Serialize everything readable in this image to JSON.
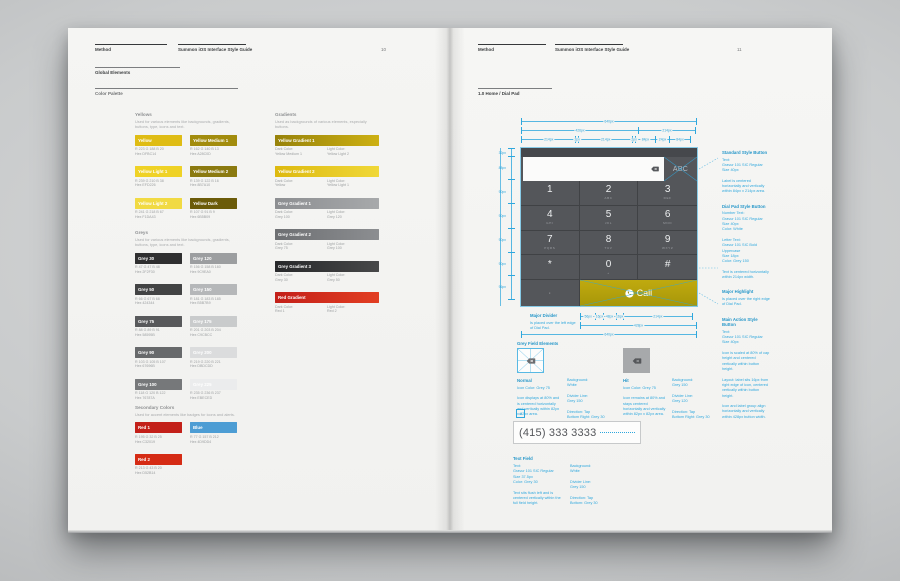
{
  "meta": {
    "colors": {
      "annotation_blue": "#2ea7dd",
      "dialpad_grey": "#54565a",
      "call_yellow": "#b3a10a",
      "page_paper": "#f4f4f2"
    }
  },
  "left_page": {
    "brand": "Method",
    "doc_title": "Summon iOS Interface Style Guide",
    "page_number": "10",
    "section_title": "Global Elements",
    "subsection_title": "Color Palette",
    "yellows": {
      "title": "Yellows",
      "description": "Used for various elements like backgrounds, gradients, buttons, type, icons and text.",
      "swatches": [
        {
          "name": "Yellow",
          "color": "#dfbc14",
          "line1": "R 223 G 188 B 20",
          "line2": "Hex DFBC14"
        },
        {
          "name": "Yellow Medium 1",
          "color": "#a28c0d",
          "line1": "R 162 G 140 B 13",
          "line2": "Hex A28C0D"
        },
        {
          "name": "Yellow Light 1",
          "color": "#efd226",
          "line1": "R 239 G 210 B 38",
          "line2": "Hex EFD226"
        },
        {
          "name": "Yellow Medium 2",
          "color": "#8b7a10",
          "line1": "R 139 G 122 B 16",
          "line2": "Hex 8B7A10"
        },
        {
          "name": "Yellow Light 2",
          "color": "#f1da43",
          "line1": "R 241 G 218 B 67",
          "line2": "Hex F1DA43"
        },
        {
          "name": "Yellow Dark",
          "color": "#6b5b09",
          "line1": "R 107 G 91 B 9",
          "line2": "Hex 6B5B09"
        }
      ]
    },
    "greys": {
      "title": "Greys",
      "description": "Used for various elements like backgrounds, gradients, buttons, type, icons and text.",
      "swatches": [
        {
          "name": "Grey 30",
          "color": "#2f2f30",
          "line1": "R 47 G 47 B 48",
          "line2": "Hex 2F2F30"
        },
        {
          "name": "Grey 120",
          "color": "#9c9ea0",
          "line1": "R 156 G 158 B 160",
          "line2": "Hex 9C9EA0"
        },
        {
          "name": "Grey 50",
          "color": "#424344",
          "line1": "R 66 G 67 B 68",
          "line2": "Hex 424344"
        },
        {
          "name": "Grey 150",
          "color": "#b5b7b9",
          "line1": "R 181 G 183 B 185",
          "line2": "Hex B5B7B9"
        },
        {
          "name": "Grey 75",
          "color": "#58595b",
          "line1": "R 88 G 89 B 91",
          "line2": "Hex 58595B"
        },
        {
          "name": "Grey 175",
          "color": "#c9cbcc",
          "line1": "R 201 G 203 B 204",
          "line2": "Hex C9CBCC"
        },
        {
          "name": "Grey 90",
          "color": "#67696b",
          "line1": "R 103 G 105 B 107",
          "line2": "Hex 67696B"
        },
        {
          "name": "Grey 200",
          "color": "#dbdcdd",
          "line1": "R 219 G 220 B 221",
          "line2": "Hex DBDCDD"
        },
        {
          "name": "Grey 100",
          "color": "#76787a",
          "line1": "R 118 G 120 B 122",
          "line2": "Hex 76787A"
        },
        {
          "name": "Grey 225",
          "color": "#ebeced",
          "line1": "R 235 G 236 B 237",
          "line2": "Hex EBECED"
        }
      ]
    },
    "secondary": {
      "title": "Secondary Colors",
      "description": "Used for accent elements like badges for icons and alerts.",
      "swatches": [
        {
          "name": "Red 1",
          "color": "#c32019",
          "line1": "R 195 G 32 B 25",
          "line2": "Hex C32019"
        },
        {
          "name": "Blue",
          "color": "#4d9dd4",
          "line1": "R 77 G 157 B 212",
          "line2": "Hex 4D9DD4"
        },
        {
          "name": "Red 2",
          "color": "#d52b14",
          "line1": "R 213 G 43 B 20",
          "line2": "Hex D52B14"
        }
      ]
    },
    "gradients": {
      "title": "Gradients",
      "description": "Used as backgrounds of various elements, especially buttons.",
      "swatches": [
        {
          "name": "Yellow Gradient 1",
          "from": "#97820a",
          "to": "#cdb013",
          "dark_label": "Dark Color:",
          "dark_value": "Yellow Medium 1",
          "light_label": "Light Color:",
          "light_value": "Yellow Light 2"
        },
        {
          "name": "Yellow Gradient 2",
          "from": "#ddb90f",
          "to": "#f0d838",
          "dark_label": "Dark Color:",
          "dark_value": "Yellow",
          "light_label": "Light Color:",
          "light_value": "Yellow Light 1"
        },
        {
          "name": "Grey Gradient 1",
          "from": "#8c8e91",
          "to": "#a7a9ab",
          "dark_label": "Dark Color:",
          "dark_value": "Grey 100",
          "light_label": "Light Color:",
          "light_value": "Grey 120"
        },
        {
          "name": "Grey Gradient 2",
          "from": "#6d6f72",
          "to": "#8c8e91",
          "dark_label": "Dark Color:",
          "dark_value": "Grey 75",
          "light_label": "Light Color:",
          "light_value": "Grey 100"
        },
        {
          "name": "Grey Gradient 3",
          "from": "#27282a",
          "to": "#474849",
          "dark_label": "Dark Color:",
          "dark_value": "Grey 30",
          "light_label": "Light Color:",
          "light_value": "Grey 50"
        },
        {
          "name": "Red Gradient",
          "from": "#c32019",
          "to": "#e23e22",
          "dark_label": "Dark Color:",
          "dark_value": "Red 1",
          "light_label": "Light Color:",
          "light_value": "Red 2"
        }
      ]
    }
  },
  "right_page": {
    "brand": "Method",
    "doc_title": "Summon iOS Interface Style Guide",
    "page_number": "11",
    "section_title": "1.0 Home / Dial Pad",
    "dialpad": {
      "abc_label": "ABC",
      "dot_key": "·",
      "call_label": "Call",
      "keys": [
        {
          "d": "1",
          "l": ""
        },
        {
          "d": "2",
          "l": "ABC"
        },
        {
          "d": "3",
          "l": "DEF"
        },
        {
          "d": "4",
          "l": "GHI"
        },
        {
          "d": "5",
          "l": "JKL"
        },
        {
          "d": "6",
          "l": "MNO"
        },
        {
          "d": "7",
          "l": "PQRS"
        },
        {
          "d": "8",
          "l": "TUV"
        },
        {
          "d": "9",
          "l": "WXYZ"
        },
        {
          "d": "*",
          "l": ""
        },
        {
          "d": "0",
          "l": "+"
        },
        {
          "d": "#",
          "l": ""
        }
      ]
    },
    "dims": {
      "top1": [
        {
          "w": "100%",
          "t": "640px"
        }
      ],
      "top2": [
        {
          "w": "67%",
          "t": "426px"
        },
        {
          "w": "33%",
          "t": "214px"
        }
      ],
      "top3": [
        {
          "w": "31.5%",
          "t": "214px"
        },
        {
          "w": "2%",
          "t": "2px"
        },
        {
          "w": "31.5%",
          "t": "214px"
        },
        {
          "w": "2%",
          "t": "2px"
        },
        {
          "w": "12%",
          "t": "84px"
        },
        {
          "w": "8.5%",
          "t": "24px"
        },
        {
          "w": "12.5%",
          "t": "84px"
        }
      ],
      "left": [
        {
          "h": "6%",
          "t": "32px"
        },
        {
          "h": "15%",
          "t": "88px"
        },
        {
          "h": "16%",
          "t": "90px"
        },
        {
          "h": "16%",
          "t": "90px"
        },
        {
          "h": "16%",
          "t": "90px"
        },
        {
          "h": "15%",
          "t": "90px"
        },
        {
          "h": "16%",
          "t": "96px"
        }
      ],
      "bot1": [
        {
          "w": "14%",
          "t": "56px"
        },
        {
          "w": "7%",
          "t": "16px"
        },
        {
          "w": "12%",
          "t": "48px"
        },
        {
          "w": "7%",
          "t": "16px"
        },
        {
          "w": "60%",
          "t": "214px"
        }
      ],
      "bot2": [
        {
          "w": "100%",
          "t": "428px"
        }
      ],
      "bot3": [
        {
          "w": "100%",
          "t": "640px"
        }
      ]
    },
    "annotations": {
      "right_col": [
        {
          "title": "Standard Style Button",
          "body": "Text:\nGravur 101 SIC Regular\nSize 40px\n\nLabel is centered horizontally and vertically within 84px x 214px area."
        },
        {
          "title": "Dial Pad Style Button",
          "body": "Number Text:\nGravur 101 SIC Regular\nSize 40px\nColor: White\n\nLetter Text:\nGravur 101 SIC Bold\nUppercase\nSize 18px\nColor: Grey 150\n\nText is centered horizontally within 214px width."
        },
        {
          "title": "Major Highlight",
          "body": "Is placed over the right edge of Dial Pad."
        },
        {
          "title": "Main Action Style Button",
          "body": "Text:\nGravur 101 SIC Regular\nSize 40px\n\nIcon is scaled at 80% of cap height and centered vertically within button height.\n\nLayout: label sits 16px from right edge of icon, centered vertically within button height.\n\nIcon and label group align horizontally and vertically within 428px button width."
        }
      ],
      "major_divider": {
        "title": "Major Divider",
        "body": "Is placed over the left edge of Dial Pad."
      },
      "grey_field": {
        "title": "Grey Field Elements",
        "normal": {
          "label": "Normal",
          "col1": "Icon Color: Grey 75\n\nIcon displays at 80% and is centered horizontally and vertically within 82px x 82px area.",
          "col2": "Background:\nWhite\n\nDivider Line:\nGrey 150\n\nDirection: Tap\nBottom Right: Grey 30"
        },
        "hit": {
          "label": "Hit",
          "col1": "Icon Color: Grey 75\n\nIcon remains at 80% and stays centered horizontally and vertically within 82px x 82px area.",
          "col2": "Background:\nGrey 150\n\nDivider Line:\nGrey 120\n\nDirection: Tap\nBottom Right: Grey 30"
        }
      },
      "text_field": {
        "title": "Text Field",
        "value": "(415) 333 3333",
        "tag": "40",
        "col1": "Text:\nGravur 101 SIC Regular\nSize 37.5px\nColor: Grey 30\n\nText sits flush left and is centered vertically within the full field height.",
        "col2": "Background:\nWhite\n\nDivider Line:\nGrey 150\n\nDirection: Tap\nBottom: Grey 30"
      }
    }
  }
}
